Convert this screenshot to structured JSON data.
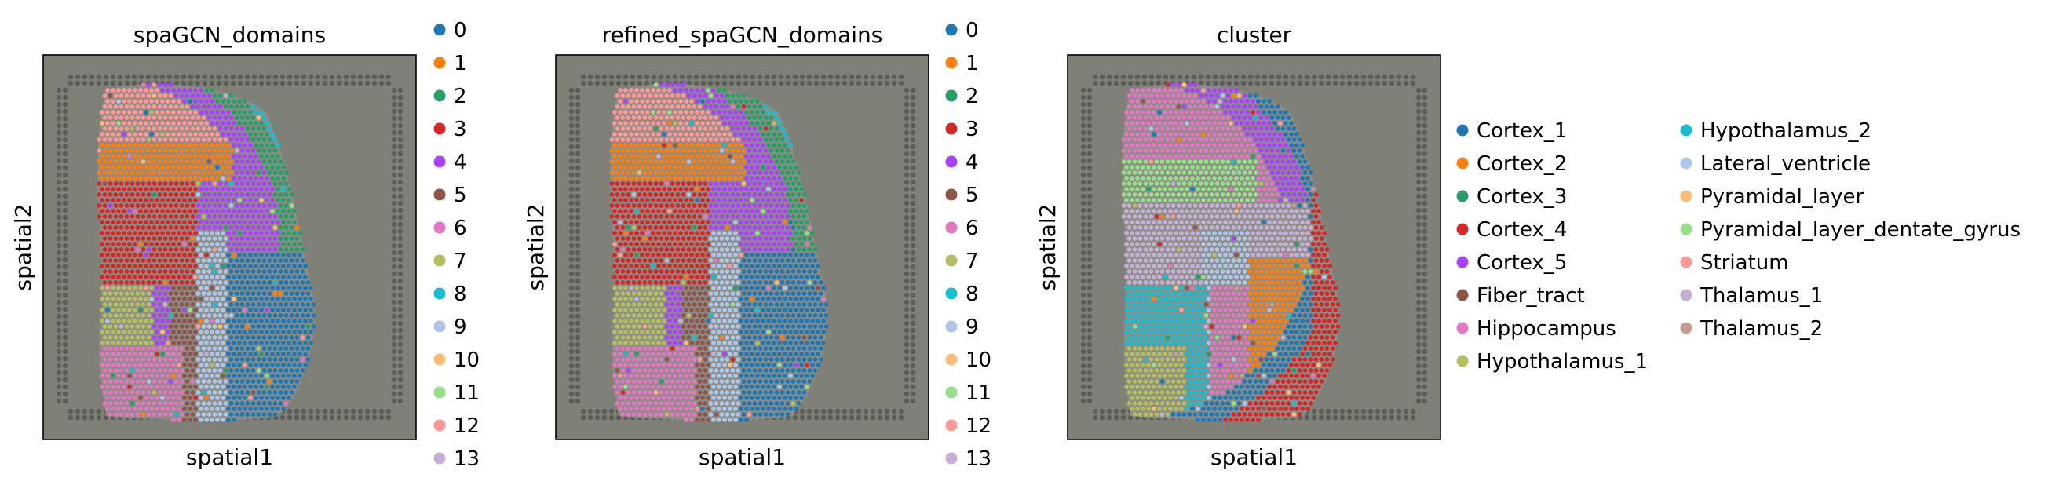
{
  "chart_data": [
    {
      "type": "scatter",
      "title": "spaGCN_domains",
      "xlabel": "spatial1",
      "ylabel": "spatial2",
      "grid": false,
      "legend_position": "right",
      "legend": [
        "0",
        "1",
        "2",
        "3",
        "4",
        "5",
        "6",
        "7",
        "8",
        "9",
        "10",
        "11",
        "12",
        "13"
      ],
      "colors": [
        "#1f77b4",
        "#ff7f0e",
        "#279e68",
        "#d62728",
        "#aa40fc",
        "#8c564b",
        "#e377c2",
        "#b5bd61",
        "#17becf",
        "#aec7e8",
        "#ffbb78",
        "#98df8a",
        "#ff9896",
        "#c5b0d5"
      ]
    },
    {
      "type": "scatter",
      "title": "refined_spaGCN_domains",
      "xlabel": "spatial1",
      "ylabel": "spatial2",
      "grid": false,
      "legend_position": "right",
      "legend": [
        "0",
        "1",
        "2",
        "3",
        "4",
        "5",
        "6",
        "7",
        "8",
        "9",
        "10",
        "11",
        "12",
        "13"
      ],
      "colors": [
        "#1f77b4",
        "#ff7f0e",
        "#279e68",
        "#d62728",
        "#aa40fc",
        "#8c564b",
        "#e377c2",
        "#b5bd61",
        "#17becf",
        "#aec7e8",
        "#ffbb78",
        "#98df8a",
        "#ff9896",
        "#c5b0d5"
      ]
    },
    {
      "type": "scatter",
      "title": "cluster",
      "xlabel": "spatial1",
      "ylabel": "spatial2",
      "grid": false,
      "legend_position": "right",
      "legend": [
        "Cortex_1",
        "Cortex_2",
        "Cortex_3",
        "Cortex_4",
        "Cortex_5",
        "Fiber_tract",
        "Hippocampus",
        "Hypothalamus_1",
        "Hypothalamus_2",
        "Lateral_ventricle",
        "Pyramidal_layer",
        "Pyramidal_layer_dentate_gyrus",
        "Striatum",
        "Thalamus_1",
        "Thalamus_2"
      ],
      "colors": [
        "#1f77b4",
        "#ff7f0e",
        "#279e68",
        "#d62728",
        "#aa40fc",
        "#8c564b",
        "#e377c2",
        "#b5bd61",
        "#17becf",
        "#aec7e8",
        "#ffbb78",
        "#98df8a",
        "#ff9896",
        "#c5b0d5",
        "#c49c94"
      ]
    }
  ]
}
